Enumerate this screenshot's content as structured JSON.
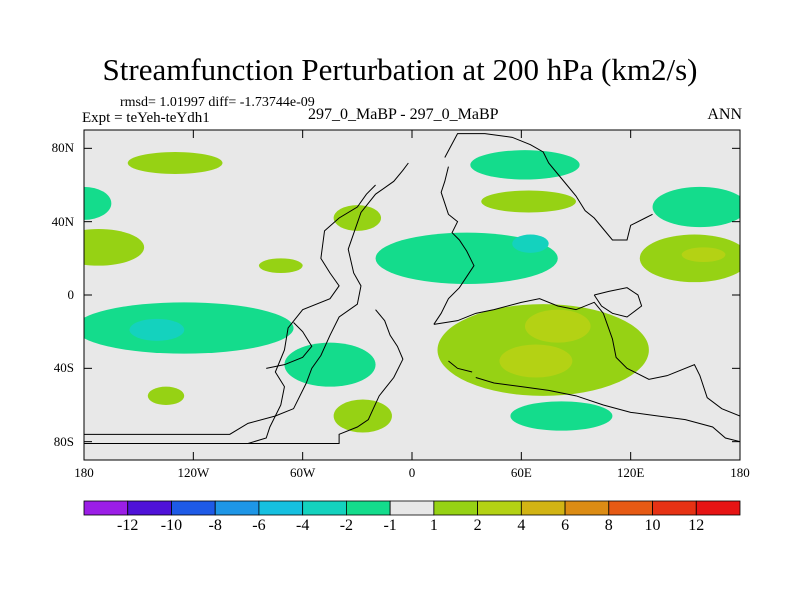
{
  "chart_data": {
    "type": "heatmap",
    "title": "Streamfunction Perturbation at 200 hPa (km2/s)",
    "stats": "rmsd= 1.01997 diff= -1.73744e-09",
    "experiment": "Expt = teYeh-teYdh1",
    "case_label": "297_0_MaBP - 297_0_MaBP",
    "season": "ANN",
    "xlabel": "",
    "ylabel": "",
    "xlim": [
      -180,
      180
    ],
    "ylim": [
      -90,
      90
    ],
    "x_ticks": [
      {
        "value": -180,
        "label": "180"
      },
      {
        "value": -120,
        "label": "120W"
      },
      {
        "value": -60,
        "label": "60W"
      },
      {
        "value": 0,
        "label": "0"
      },
      {
        "value": 60,
        "label": "60E"
      },
      {
        "value": 120,
        "label": "120E"
      },
      {
        "value": 180,
        "label": "180"
      }
    ],
    "y_ticks": [
      {
        "value": 80,
        "label": "80N"
      },
      {
        "value": 40,
        "label": "40N"
      },
      {
        "value": 0,
        "label": "0"
      },
      {
        "value": -40,
        "label": "40S"
      },
      {
        "value": -80,
        "label": "80S"
      }
    ],
    "colorbar": {
      "levels": [
        "-12",
        "-10",
        "-8",
        "-6",
        "-4",
        "-2",
        "-1",
        "1",
        "2",
        "4",
        "6",
        "8",
        "10",
        "12"
      ],
      "colors": [
        "#9b1ee6",
        "#4f12d8",
        "#1e5ae6",
        "#1e96e6",
        "#16c0e0",
        "#14d2be",
        "#14dc8c",
        "#e8e8e8",
        "#96d214",
        "#b4d214",
        "#d2b414",
        "#dc8c14",
        "#e65a14",
        "#e63214",
        "#e61414"
      ]
    },
    "background_color": "#e8e8e8",
    "anomaly_regions": [
      {
        "lon": -130,
        "lat": 72,
        "rx": 26,
        "ry": 6,
        "level": 1
      },
      {
        "lon": 62,
        "lat": 71,
        "rx": 30,
        "ry": 8,
        "level": -1
      },
      {
        "lon": -180,
        "lat": 50,
        "rx": 15,
        "ry": 9,
        "level": -1
      },
      {
        "lon": -172,
        "lat": 26,
        "rx": 25,
        "ry": 10,
        "level": 1
      },
      {
        "lon": -30,
        "lat": 42,
        "rx": 13,
        "ry": 7,
        "level": 1
      },
      {
        "lon": -72,
        "lat": 16,
        "rx": 12,
        "ry": 4,
        "level": 1
      },
      {
        "lon": 64,
        "lat": 51,
        "rx": 26,
        "ry": 6,
        "level": 1
      },
      {
        "lon": 158,
        "lat": 48,
        "rx": 26,
        "ry": 11,
        "level": -1
      },
      {
        "lon": 155,
        "lat": 20,
        "rx": 30,
        "ry": 13,
        "level": 1
      },
      {
        "lon": 160,
        "lat": 22,
        "rx": 12,
        "ry": 4,
        "level": 2
      },
      {
        "lon": 30,
        "lat": 20,
        "rx": 50,
        "ry": 14,
        "level": -1
      },
      {
        "lon": 65,
        "lat": 28,
        "rx": 10,
        "ry": 5,
        "level": -2
      },
      {
        "lon": -125,
        "lat": -18,
        "rx": 60,
        "ry": 14,
        "level": -1
      },
      {
        "lon": -45,
        "lat": -38,
        "rx": 25,
        "ry": 12,
        "level": -1
      },
      {
        "lon": -140,
        "lat": -19,
        "rx": 15,
        "ry": 6,
        "level": -2
      },
      {
        "lon": -135,
        "lat": -55,
        "rx": 10,
        "ry": 5,
        "level": 1
      },
      {
        "lon": -27,
        "lat": -66,
        "rx": 16,
        "ry": 9,
        "level": 1
      },
      {
        "lon": 72,
        "lat": -30,
        "rx": 58,
        "ry": 25,
        "level": 1
      },
      {
        "lon": 80,
        "lat": -17,
        "rx": 18,
        "ry": 9,
        "level": 2
      },
      {
        "lon": 68,
        "lat": -36,
        "rx": 20,
        "ry": 9,
        "level": 2
      },
      {
        "lon": 82,
        "lat": -66,
        "rx": 28,
        "ry": 8,
        "level": -1
      }
    ],
    "coastlines": [
      [
        [
          -180,
          -76
        ],
        [
          -100,
          -76
        ],
        [
          -90,
          -70
        ],
        [
          -75,
          -66
        ],
        [
          -65,
          -62
        ],
        [
          -58,
          -48
        ],
        [
          -55,
          -40
        ],
        [
          -50,
          -33
        ],
        [
          -45,
          -22
        ],
        [
          -40,
          -12
        ],
        [
          -30,
          -5
        ],
        [
          -28,
          5
        ],
        [
          -32,
          12
        ],
        [
          -35,
          25
        ],
        [
          -28,
          45
        ],
        [
          -20,
          55
        ],
        [
          -10,
          62
        ],
        [
          -5,
          68
        ],
        [
          -2,
          72
        ]
      ],
      [
        [
          -180,
          -81
        ],
        [
          -90,
          -81
        ],
        [
          -80,
          -78
        ],
        [
          -78,
          -72
        ],
        [
          -72,
          -60
        ],
        [
          -70,
          -50
        ],
        [
          -75,
          -42
        ],
        [
          -70,
          -30
        ],
        [
          -68,
          -18
        ],
        [
          -60,
          -8
        ],
        [
          -45,
          -2
        ],
        [
          -40,
          5
        ],
        [
          -45,
          12
        ],
        [
          -50,
          20
        ],
        [
          -48,
          35
        ],
        [
          -40,
          42
        ],
        [
          -30,
          48
        ],
        [
          -25,
          55
        ],
        [
          -20,
          60
        ]
      ],
      [
        [
          -90,
          -81
        ],
        [
          -40,
          -81
        ],
        [
          -40,
          -76
        ],
        [
          -30,
          -72
        ],
        [
          -24,
          -68
        ],
        [
          -18,
          -55
        ],
        [
          -10,
          -45
        ],
        [
          -5,
          -35
        ],
        [
          -8,
          -28
        ],
        [
          -12,
          -22
        ],
        [
          -15,
          -14
        ],
        [
          -20,
          -8
        ]
      ],
      [
        [
          -80,
          -40
        ],
        [
          -70,
          -38
        ],
        [
          -60,
          -34
        ],
        [
          -55,
          -28
        ],
        [
          -60,
          -20
        ],
        [
          -65,
          -15
        ]
      ],
      [
        [
          18,
          75
        ],
        [
          25,
          88
        ],
        [
          40,
          88
        ],
        [
          55,
          86
        ],
        [
          65,
          82
        ],
        [
          72,
          78
        ],
        [
          75,
          72
        ],
        [
          80,
          66
        ],
        [
          85,
          60
        ],
        [
          90,
          54
        ],
        [
          95,
          46
        ],
        [
          100,
          42
        ],
        [
          105,
          36
        ],
        [
          110,
          30
        ],
        [
          118,
          30
        ],
        [
          120,
          38
        ],
        [
          128,
          42
        ],
        [
          132,
          44
        ]
      ],
      [
        [
          20,
          70
        ],
        [
          18,
          62
        ],
        [
          16,
          56
        ],
        [
          18,
          50
        ],
        [
          20,
          44
        ],
        [
          25,
          40
        ],
        [
          22,
          34
        ],
        [
          26,
          30
        ],
        [
          30,
          24
        ],
        [
          34,
          16
        ],
        [
          30,
          10
        ],
        [
          26,
          4
        ],
        [
          20,
          -2
        ],
        [
          16,
          -10
        ],
        [
          12,
          -16
        ]
      ],
      [
        [
          12,
          -16
        ],
        [
          25,
          -14
        ],
        [
          35,
          -10
        ],
        [
          45,
          -8
        ],
        [
          60,
          -4
        ],
        [
          70,
          -2
        ],
        [
          80,
          -6
        ],
        [
          90,
          -8
        ],
        [
          100,
          -4
        ],
        [
          105,
          -10
        ]
      ],
      [
        [
          105,
          -10
        ],
        [
          110,
          -24
        ],
        [
          112,
          -34
        ],
        [
          118,
          -40
        ],
        [
          130,
          -46
        ],
        [
          140,
          -44
        ],
        [
          155,
          -38
        ],
        [
          158,
          -44
        ],
        [
          162,
          -56
        ],
        [
          170,
          -62
        ],
        [
          180,
          -66
        ]
      ],
      [
        [
          35,
          -45
        ],
        [
          45,
          -48
        ],
        [
          60,
          -50
        ],
        [
          75,
          -52
        ],
        [
          90,
          -55
        ],
        [
          105,
          -60
        ],
        [
          120,
          -64
        ],
        [
          135,
          -66
        ],
        [
          150,
          -68
        ],
        [
          165,
          -72
        ],
        [
          172,
          -78
        ],
        [
          180,
          -80
        ]
      ],
      [
        [
          20,
          -36
        ],
        [
          25,
          -40
        ],
        [
          33,
          -42
        ]
      ],
      [
        [
          100,
          0
        ],
        [
          108,
          2
        ],
        [
          118,
          4
        ],
        [
          124,
          0
        ],
        [
          126,
          -6
        ],
        [
          118,
          -12
        ],
        [
          110,
          -10
        ],
        [
          104,
          -6
        ],
        [
          100,
          0
        ]
      ]
    ]
  }
}
